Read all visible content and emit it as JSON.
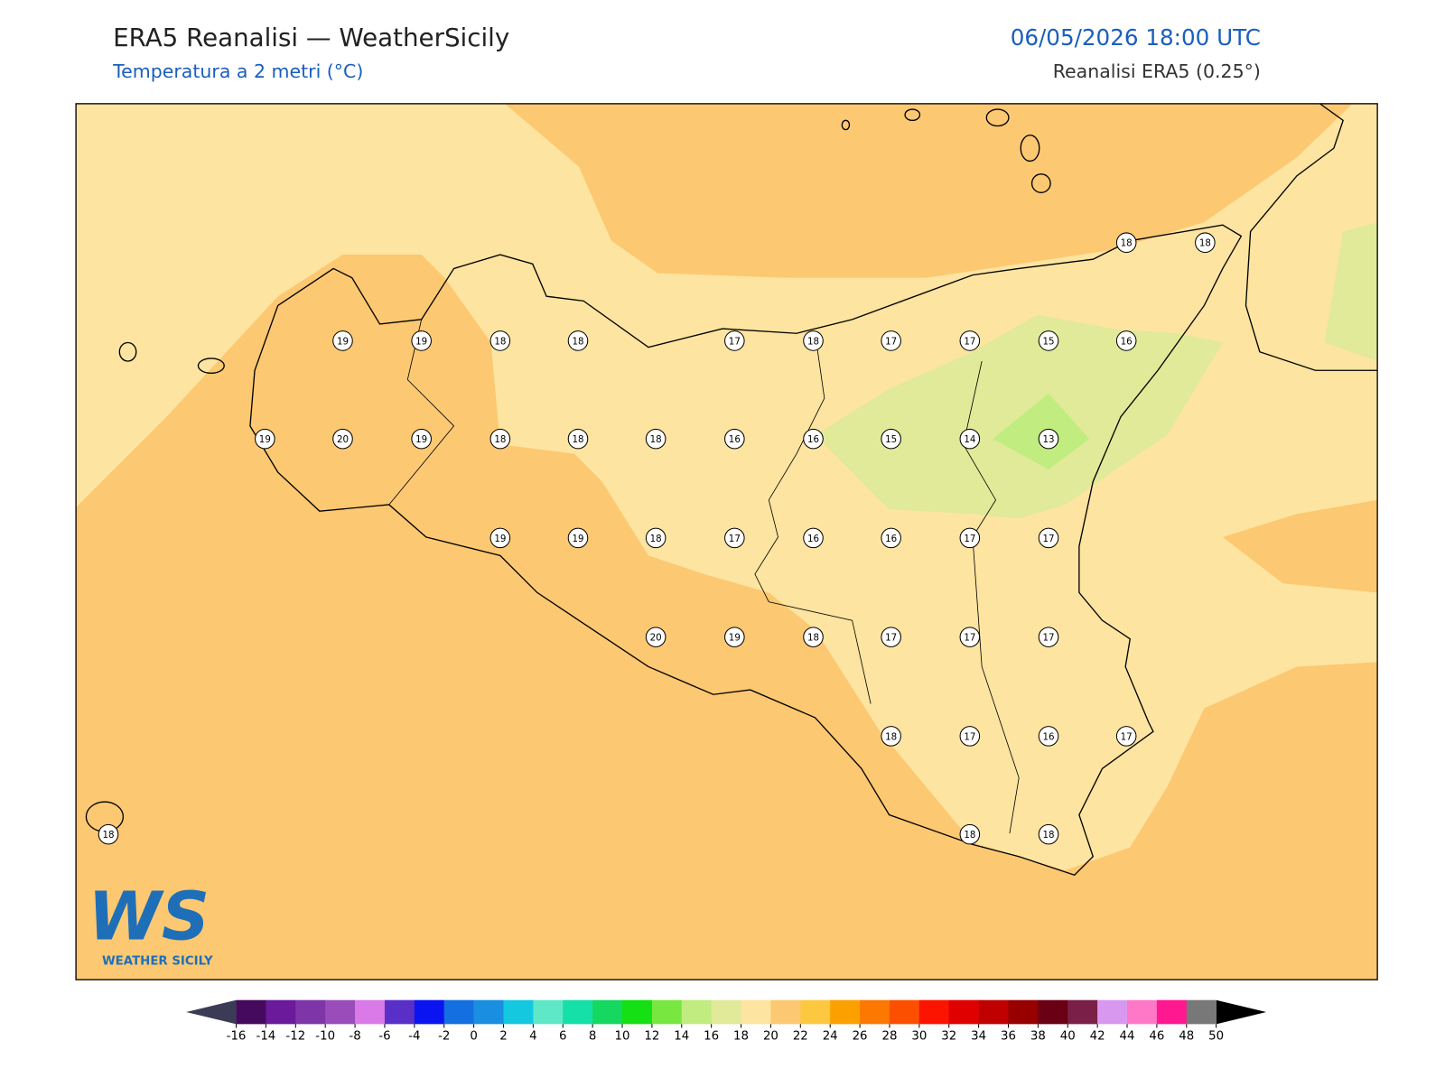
{
  "header": {
    "title": "ERA5 Reanalisi — WeatherSicily",
    "subtitle": "Temperatura a 2 metri (°C)",
    "datetime": "06/05/2026 18:00 UTC",
    "source": "Reanalisi ERA5 (0.25°)"
  },
  "map": {
    "stations": [
      18,
      18,
      19,
      19,
      18,
      18,
      17,
      18,
      17,
      17,
      15,
      16,
      19,
      20,
      19,
      18,
      18,
      18,
      16,
      16,
      15,
      14,
      13,
      19,
      19,
      18,
      17,
      16,
      16,
      17,
      17,
      20,
      19,
      18,
      17,
      17,
      17,
      18,
      17,
      16,
      17,
      18,
      18,
      18
    ]
  },
  "colorbar": {
    "ticks": [
      -16,
      -14,
      -12,
      -10,
      -8,
      -6,
      -4,
      -2,
      0,
      2,
      4,
      6,
      8,
      10,
      12,
      14,
      16,
      18,
      20,
      22,
      24,
      26,
      28,
      30,
      32,
      34,
      36,
      38,
      40,
      42,
      44,
      46,
      48,
      50
    ],
    "colors": [
      "#450a5e",
      "#6a1a9a",
      "#7e35a8",
      "#9b4cbb",
      "#d97ae8",
      "#5a2fc8",
      "#0a14f0",
      "#1470e0",
      "#1a8ee0",
      "#14c8e0",
      "#5ee8c8",
      "#14e0a8",
      "#14d860",
      "#14e014",
      "#78e840",
      "#c0ec80",
      "#e0ea98",
      "#fde4a0",
      "#fcc872",
      "#fcc840",
      "#fca000",
      "#fc7800",
      "#fc5000",
      "#fc1400",
      "#e00000",
      "#c00000",
      "#980000",
      "#6a0014",
      "#7a2048",
      "#d898f0",
      "#ff78c8",
      "#ff1890",
      "#787878"
    ],
    "under_color": "#3b3b55",
    "over_color": "#000000"
  },
  "logo": {
    "text": "WS",
    "subtitle": "WEATHER SICILY"
  }
}
